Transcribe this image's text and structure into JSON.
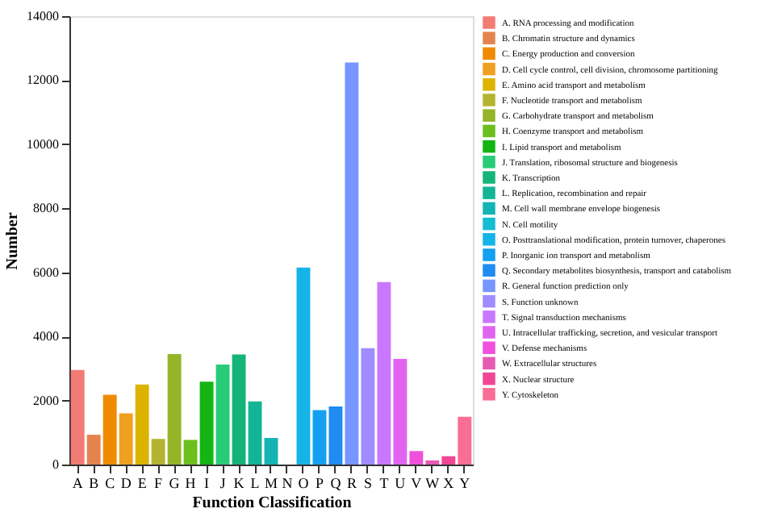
{
  "chart_data": {
    "type": "bar",
    "xlabel": "Function Classification",
    "ylabel": "Number",
    "categories": [
      "A",
      "B",
      "C",
      "D",
      "E",
      "F",
      "G",
      "H",
      "I",
      "J",
      "K",
      "L",
      "M",
      "N",
      "O",
      "P",
      "Q",
      "R",
      "S",
      "T",
      "U",
      "V",
      "W",
      "X",
      "Y"
    ],
    "ylim": [
      0,
      14000
    ],
    "yticks": [
      0,
      2000,
      4000,
      6000,
      8000,
      10000,
      12000,
      14000
    ],
    "grid": false,
    "legend": "right",
    "series": [
      {
        "name": "A. RNA processing and modification",
        "color": "#f27b74",
        "values": [
          2950,
          null,
          null,
          null,
          null,
          null,
          null,
          null,
          null,
          null,
          null,
          null,
          null,
          null,
          null,
          null,
          null,
          null,
          null,
          null,
          null,
          null,
          null,
          null,
          null
        ]
      },
      {
        "name": "B. Chromatin structure and dynamics",
        "color": "#e5834f",
        "values": [
          null,
          930,
          null,
          null,
          null,
          null,
          null,
          null,
          null,
          null,
          null,
          null,
          null,
          null,
          null,
          null,
          null,
          null,
          null,
          null,
          null,
          null,
          null,
          null,
          null
        ]
      },
      {
        "name": "C. Energy production and conversion",
        "color": "#f08a00",
        "values": [
          null,
          null,
          2180,
          null,
          null,
          null,
          null,
          null,
          null,
          null,
          null,
          null,
          null,
          null,
          null,
          null,
          null,
          null,
          null,
          null,
          null,
          null,
          null,
          null,
          null
        ]
      },
      {
        "name": "D. Cell cycle control, cell division, chromosome partitioning",
        "color": "#f0a020",
        "values": [
          null,
          null,
          null,
          1600,
          null,
          null,
          null,
          null,
          null,
          null,
          null,
          null,
          null,
          null,
          null,
          null,
          null,
          null,
          null,
          null,
          null,
          null,
          null,
          null,
          null
        ]
      },
      {
        "name": "E. Amino acid transport and metabolism",
        "color": "#dcb400",
        "values": [
          null,
          null,
          null,
          null,
          2500,
          null,
          null,
          null,
          null,
          null,
          null,
          null,
          null,
          null,
          null,
          null,
          null,
          null,
          null,
          null,
          null,
          null,
          null,
          null,
          null
        ]
      },
      {
        "name": "F. Nucleotide transport and metabolism",
        "color": "#b4b432",
        "values": [
          null,
          null,
          null,
          null,
          null,
          800,
          null,
          null,
          null,
          null,
          null,
          null,
          null,
          null,
          null,
          null,
          null,
          null,
          null,
          null,
          null,
          null,
          null,
          null,
          null
        ]
      },
      {
        "name": "G. Carbohydrate transport and metabolism",
        "color": "#96b428",
        "values": [
          null,
          null,
          null,
          null,
          null,
          null,
          3450,
          null,
          null,
          null,
          null,
          null,
          null,
          null,
          null,
          null,
          null,
          null,
          null,
          null,
          null,
          null,
          null,
          null,
          null
        ]
      },
      {
        "name": "H. Coenzyme transport and metabolism",
        "color": "#6cc01e",
        "values": [
          null,
          null,
          null,
          null,
          null,
          null,
          null,
          770,
          null,
          null,
          null,
          null,
          null,
          null,
          null,
          null,
          null,
          null,
          null,
          null,
          null,
          null,
          null,
          null,
          null
        ]
      },
      {
        "name": "I. Lipid transport and metabolism",
        "color": "#14b414",
        "values": [
          null,
          null,
          null,
          null,
          null,
          null,
          null,
          null,
          2590,
          null,
          null,
          null,
          null,
          null,
          null,
          null,
          null,
          null,
          null,
          null,
          null,
          null,
          null,
          null,
          null
        ]
      },
      {
        "name": "J. Translation, ribosomal structure and biogenesis",
        "color": "#28cc78",
        "values": [
          null,
          null,
          null,
          null,
          null,
          null,
          null,
          null,
          null,
          3120,
          null,
          null,
          null,
          null,
          null,
          null,
          null,
          null,
          null,
          null,
          null,
          null,
          null,
          null,
          null
        ]
      },
      {
        "name": "K. Transcription",
        "color": "#14b478",
        "values": [
          null,
          null,
          null,
          null,
          null,
          null,
          null,
          null,
          null,
          null,
          3440,
          null,
          null,
          null,
          null,
          null,
          null,
          null,
          null,
          null,
          null,
          null,
          null,
          null,
          null
        ]
      },
      {
        "name": "L. Replication, recombination and repair",
        "color": "#14b496",
        "values": [
          null,
          null,
          null,
          null,
          null,
          null,
          null,
          null,
          null,
          null,
          null,
          1970,
          null,
          null,
          null,
          null,
          null,
          null,
          null,
          null,
          null,
          null,
          null,
          null,
          null
        ]
      },
      {
        "name": "M. Cell wall membrane envelope biogenesis",
        "color": "#14b4b4",
        "values": [
          null,
          null,
          null,
          null,
          null,
          null,
          null,
          null,
          null,
          null,
          null,
          null,
          830,
          null,
          null,
          null,
          null,
          null,
          null,
          null,
          null,
          null,
          null,
          null,
          null
        ]
      },
      {
        "name": "N. Cell motility",
        "color": "#14bed2",
        "values": [
          null,
          null,
          null,
          null,
          null,
          null,
          null,
          null,
          null,
          null,
          null,
          null,
          null,
          null,
          null,
          null,
          null,
          null,
          null,
          null,
          null,
          null,
          null,
          null,
          null
        ]
      },
      {
        "name": "O. Posttranslational modification, protein turnover, chaperones",
        "color": "#14b4e6",
        "values": [
          null,
          null,
          null,
          null,
          null,
          null,
          null,
          null,
          null,
          null,
          null,
          null,
          null,
          null,
          6150,
          null,
          null,
          null,
          null,
          null,
          null,
          null,
          null,
          null,
          null
        ]
      },
      {
        "name": "P. Inorganic ion transport and metabolism",
        "color": "#14a0f0",
        "values": [
          null,
          null,
          null,
          null,
          null,
          null,
          null,
          null,
          null,
          null,
          null,
          null,
          null,
          null,
          null,
          1700,
          null,
          null,
          null,
          null,
          null,
          null,
          null,
          null,
          null
        ]
      },
      {
        "name": "Q. Secondary metabolites biosynthesis, transport and catabolism",
        "color": "#1e8cf0",
        "values": [
          null,
          null,
          null,
          null,
          null,
          null,
          null,
          null,
          null,
          null,
          null,
          null,
          null,
          null,
          null,
          null,
          1810,
          null,
          null,
          null,
          null,
          null,
          null,
          null,
          null
        ]
      },
      {
        "name": "R. General function prediction only",
        "color": "#7896ff",
        "values": [
          null,
          null,
          null,
          null,
          null,
          null,
          null,
          null,
          null,
          null,
          null,
          null,
          null,
          null,
          null,
          null,
          null,
          12550,
          null,
          null,
          null,
          null,
          null,
          null,
          null
        ]
      },
      {
        "name": "S. Function unknown",
        "color": "#a08cff",
        "values": [
          null,
          null,
          null,
          null,
          null,
          null,
          null,
          null,
          null,
          null,
          null,
          null,
          null,
          null,
          null,
          null,
          null,
          null,
          3630,
          null,
          null,
          null,
          null,
          null,
          null
        ]
      },
      {
        "name": "T. Signal transduction mechanisms",
        "color": "#c878ff",
        "values": [
          null,
          null,
          null,
          null,
          null,
          null,
          null,
          null,
          null,
          null,
          null,
          null,
          null,
          null,
          null,
          null,
          null,
          null,
          null,
          5700,
          null,
          null,
          null,
          null,
          null
        ]
      },
      {
        "name": "U. Intracellular trafficking, secretion, and vesicular transport",
        "color": "#e164f0",
        "values": [
          null,
          null,
          null,
          null,
          null,
          null,
          null,
          null,
          null,
          null,
          null,
          null,
          null,
          null,
          null,
          null,
          null,
          null,
          null,
          null,
          3300,
          null,
          null,
          null,
          null
        ]
      },
      {
        "name": "V. Defense mechanisms",
        "color": "#f050dc",
        "values": [
          null,
          null,
          null,
          null,
          null,
          null,
          null,
          null,
          null,
          null,
          null,
          null,
          null,
          null,
          null,
          null,
          null,
          null,
          null,
          null,
          null,
          420,
          null,
          null,
          null
        ]
      },
      {
        "name": "W. Extracellular structures",
        "color": "#e65ab4",
        "values": [
          null,
          null,
          null,
          null,
          null,
          null,
          null,
          null,
          null,
          null,
          null,
          null,
          null,
          null,
          null,
          null,
          null,
          null,
          null,
          null,
          null,
          null,
          130,
          null,
          null
        ]
      },
      {
        "name": "X. Nuclear structure",
        "color": "#f04696",
        "values": [
          null,
          null,
          null,
          null,
          null,
          null,
          null,
          null,
          null,
          null,
          null,
          null,
          null,
          null,
          null,
          null,
          null,
          null,
          null,
          null,
          null,
          null,
          null,
          260,
          null
        ]
      },
      {
        "name": "Y. Cytoskeleton",
        "color": "#fa6e96",
        "values": [
          null,
          null,
          null,
          null,
          null,
          null,
          null,
          null,
          null,
          null,
          null,
          null,
          null,
          null,
          null,
          null,
          null,
          null,
          null,
          null,
          null,
          null,
          null,
          null,
          1490
        ]
      }
    ]
  }
}
